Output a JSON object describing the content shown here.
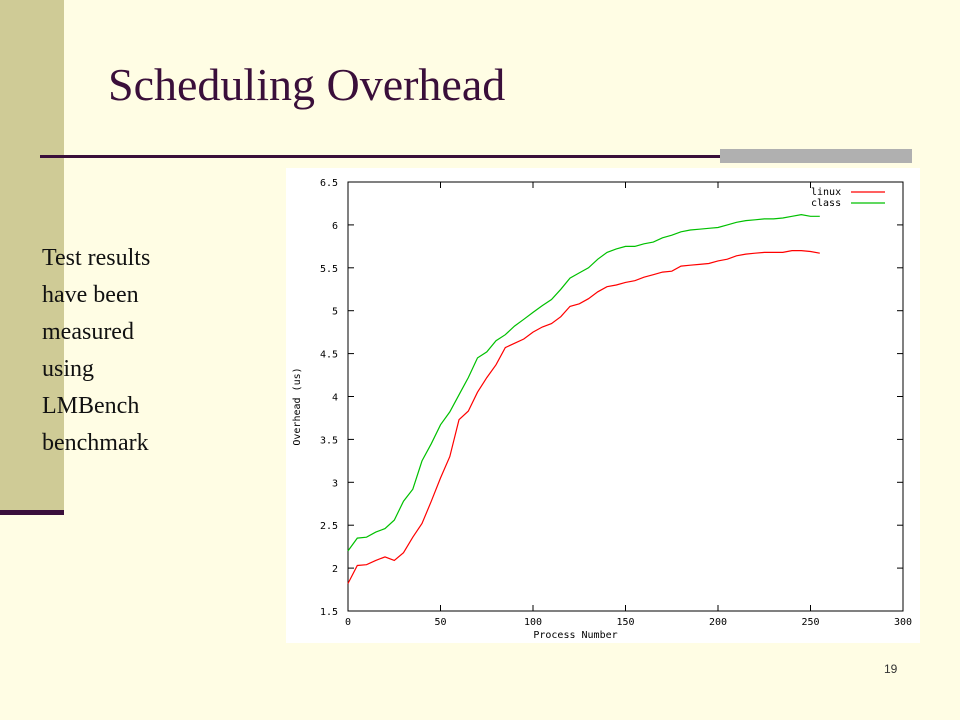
{
  "slide": {
    "title": "Scheduling Overhead",
    "body_lines": [
      "Test results",
      "have been",
      "measured",
      "using",
      "LMBench",
      "benchmark"
    ],
    "page_number": "19"
  },
  "chart_data": {
    "type": "line",
    "xlabel": "Process Number",
    "ylabel": "Overhead (us)",
    "xlim": [
      0,
      300
    ],
    "ylim": [
      1.5,
      6.5
    ],
    "x_ticks": [
      "0",
      "50",
      "100",
      "150",
      "200",
      "250",
      "300"
    ],
    "y_ticks": [
      "1.5",
      "2",
      "2.5",
      "3",
      "3.5",
      "4",
      "4.5",
      "5",
      "5.5",
      "6",
      "6.5"
    ],
    "legend_position": "top-right",
    "grid": false,
    "series": [
      {
        "name": "linux",
        "color": "#ff0000",
        "x": [
          0,
          5,
          10,
          15,
          20,
          25,
          30,
          35,
          40,
          45,
          50,
          55,
          60,
          65,
          70,
          75,
          80,
          85,
          90,
          95,
          100,
          105,
          110,
          115,
          120,
          125,
          130,
          135,
          140,
          145,
          150,
          155,
          160,
          165,
          170,
          175,
          180,
          185,
          190,
          195,
          200,
          205,
          210,
          215,
          220,
          225,
          230,
          235,
          240,
          245,
          250,
          255
        ],
        "y": [
          1.82,
          2.03,
          2.04,
          2.09,
          2.13,
          2.09,
          2.18,
          2.36,
          2.52,
          2.78,
          3.05,
          3.3,
          3.73,
          3.83,
          4.05,
          4.22,
          4.37,
          4.57,
          4.62,
          4.67,
          4.75,
          4.81,
          4.85,
          4.93,
          5.05,
          5.08,
          5.14,
          5.22,
          5.28,
          5.3,
          5.33,
          5.35,
          5.39,
          5.42,
          5.45,
          5.46,
          5.52,
          5.53,
          5.54,
          5.55,
          5.58,
          5.6,
          5.64,
          5.66,
          5.67,
          5.68,
          5.68,
          5.68,
          5.7,
          5.7,
          5.69,
          5.67
        ]
      },
      {
        "name": "class",
        "color": "#00c000",
        "x": [
          0,
          5,
          10,
          15,
          20,
          25,
          30,
          35,
          40,
          45,
          50,
          55,
          60,
          65,
          70,
          75,
          80,
          85,
          90,
          95,
          100,
          105,
          110,
          115,
          120,
          125,
          130,
          135,
          140,
          145,
          150,
          155,
          160,
          165,
          170,
          175,
          180,
          185,
          190,
          195,
          200,
          205,
          210,
          215,
          220,
          225,
          230,
          235,
          240,
          245,
          250,
          255
        ],
        "y": [
          2.2,
          2.35,
          2.36,
          2.42,
          2.46,
          2.56,
          2.78,
          2.92,
          3.25,
          3.45,
          3.67,
          3.82,
          4.02,
          4.22,
          4.45,
          4.52,
          4.65,
          4.72,
          4.82,
          4.9,
          4.98,
          5.06,
          5.13,
          5.25,
          5.38,
          5.44,
          5.5,
          5.6,
          5.68,
          5.72,
          5.75,
          5.75,
          5.78,
          5.8,
          5.85,
          5.88,
          5.92,
          5.94,
          5.95,
          5.96,
          5.97,
          6.0,
          6.03,
          6.05,
          6.06,
          6.07,
          6.07,
          6.08,
          6.1,
          6.12,
          6.1,
          6.1
        ]
      }
    ]
  }
}
